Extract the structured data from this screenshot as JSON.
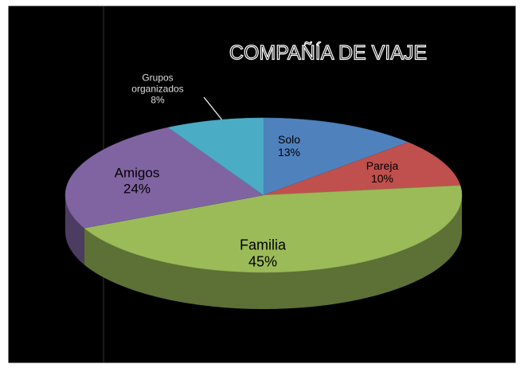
{
  "chart_data": {
    "type": "pie",
    "title": "COMPAÑÍA DE VIAJE",
    "categories": [
      "Solo",
      "Pareja",
      "Familia",
      "Amigos",
      "Grupos organizados"
    ],
    "values": [
      13,
      10,
      45,
      24,
      8
    ],
    "value_labels": [
      "13%",
      "10%",
      "45%",
      "24%",
      "8%"
    ],
    "colors": [
      "#4f81bd",
      "#c0504d",
      "#9bbb59",
      "#8064a2",
      "#4bacc6"
    ]
  }
}
